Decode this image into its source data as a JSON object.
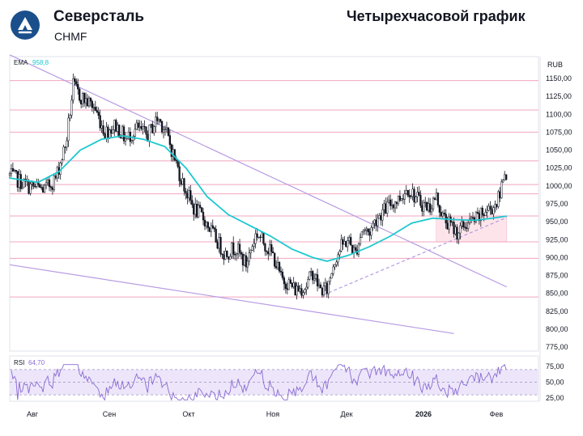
{
  "header": {
    "company": "Северсталь",
    "ticker": "CHMF",
    "chart_title": "Четырехчасовой график"
  },
  "colors": {
    "logo": "#1a4f8b",
    "candles": "#131722",
    "ema": "#1ec8d0",
    "level": "#f2a5bf",
    "trendline": "#b69ae3",
    "support_dash": "#b69ae3",
    "zone": "#fce4ea",
    "rsi": "#8a6bd1",
    "rsi_band": "#ede6fa"
  },
  "chart_data": [
    {
      "type": "candlestick",
      "ylabel": "RUB",
      "ylim": [
        775,
        1165
      ],
      "yticks": [
        "1150,00",
        "1125,00",
        "1100,00",
        "1075,00",
        "1050,00",
        "1025,00",
        "1000,00",
        "975,00",
        "950,00",
        "925,00",
        "900,00",
        "875,00",
        "850,00",
        "825,00",
        "800,00",
        "775,00"
      ],
      "xticks": [
        "Авг",
        "Сен",
        "Окт",
        "Ноя",
        "Дек",
        "2026",
        "Фев"
      ],
      "ema_label": "EMA",
      "ema_value": "958,8",
      "levels": [
        1147,
        1106,
        1075,
        1035,
        1002,
        989,
        958,
        922,
        899,
        845
      ],
      "price_path": [
        [
          0,
          1015
        ],
        [
          5,
          1000
        ],
        [
          10,
          995
        ],
        [
          13,
          1010
        ],
        [
          16,
          1060
        ],
        [
          18,
          1140
        ],
        [
          20,
          1125
        ],
        [
          24,
          1110
        ],
        [
          27,
          1075
        ],
        [
          30,
          1085
        ],
        [
          33,
          1065
        ],
        [
          36,
          1080
        ],
        [
          39,
          1070
        ],
        [
          42,
          1095
        ],
        [
          44,
          1080
        ],
        [
          46,
          1050
        ],
        [
          49,
          1005
        ],
        [
          52,
          970
        ],
        [
          55,
          955
        ],
        [
          58,
          930
        ],
        [
          61,
          905
        ],
        [
          64,
          915
        ],
        [
          67,
          890
        ],
        [
          70,
          935
        ],
        [
          73,
          915
        ],
        [
          75,
          900
        ],
        [
          77,
          870
        ],
        [
          79,
          865
        ],
        [
          81,
          855
        ],
        [
          84,
          860
        ],
        [
          86,
          880
        ],
        [
          88,
          855
        ],
        [
          90,
          855
        ],
        [
          92,
          895
        ],
        [
          94,
          915
        ],
        [
          96,
          925
        ],
        [
          98,
          905
        ],
        [
          100,
          940
        ],
        [
          102,
          935
        ],
        [
          104,
          955
        ],
        [
          106,
          965
        ],
        [
          108,
          975
        ],
        [
          110,
          980
        ],
        [
          113,
          997
        ],
        [
          115,
          985
        ],
        [
          117,
          975
        ],
        [
          119,
          970
        ],
        [
          121,
          985
        ],
        [
          123,
          955
        ],
        [
          125,
          945
        ],
        [
          127,
          935
        ],
        [
          129,
          945
        ],
        [
          131,
          950
        ],
        [
          133,
          955
        ],
        [
          135,
          965
        ],
        [
          137,
          970
        ],
        [
          139,
          985
        ],
        [
          140,
          1018
        ],
        [
          141,
          1020
        ]
      ],
      "ema_path": [
        [
          0,
          1011
        ],
        [
          8,
          1005
        ],
        [
          14,
          1020
        ],
        [
          20,
          1050
        ],
        [
          26,
          1065
        ],
        [
          32,
          1070
        ],
        [
          38,
          1065
        ],
        [
          44,
          1055
        ],
        [
          50,
          1025
        ],
        [
          56,
          985
        ],
        [
          62,
          960
        ],
        [
          68,
          945
        ],
        [
          74,
          930
        ],
        [
          80,
          912
        ],
        [
          86,
          900
        ],
        [
          90,
          895
        ],
        [
          96,
          903
        ],
        [
          102,
          915
        ],
        [
          108,
          930
        ],
        [
          114,
          948
        ],
        [
          120,
          955
        ],
        [
          126,
          953
        ],
        [
          132,
          952
        ],
        [
          137,
          955
        ],
        [
          141,
          958
        ]
      ],
      "trendlines": [
        {
          "from": [
            0,
            1183
          ],
          "to": [
            141,
            859
          ]
        },
        {
          "from": [
            0,
            890
          ],
          "to": [
            126,
            794
          ]
        },
        {
          "from": [
            89,
            848
          ],
          "to": [
            141,
            956
          ],
          "style": "dashed"
        }
      ],
      "zone": {
        "from": 121,
        "to": 141,
        "low": 922,
        "high": 958
      }
    },
    {
      "type": "line",
      "label": "RSI",
      "value": "64,70",
      "ylim": [
        20,
        80
      ],
      "yticks": [
        "75,00",
        "50,00",
        "25,00"
      ],
      "band": [
        30,
        70
      ]
    }
  ]
}
